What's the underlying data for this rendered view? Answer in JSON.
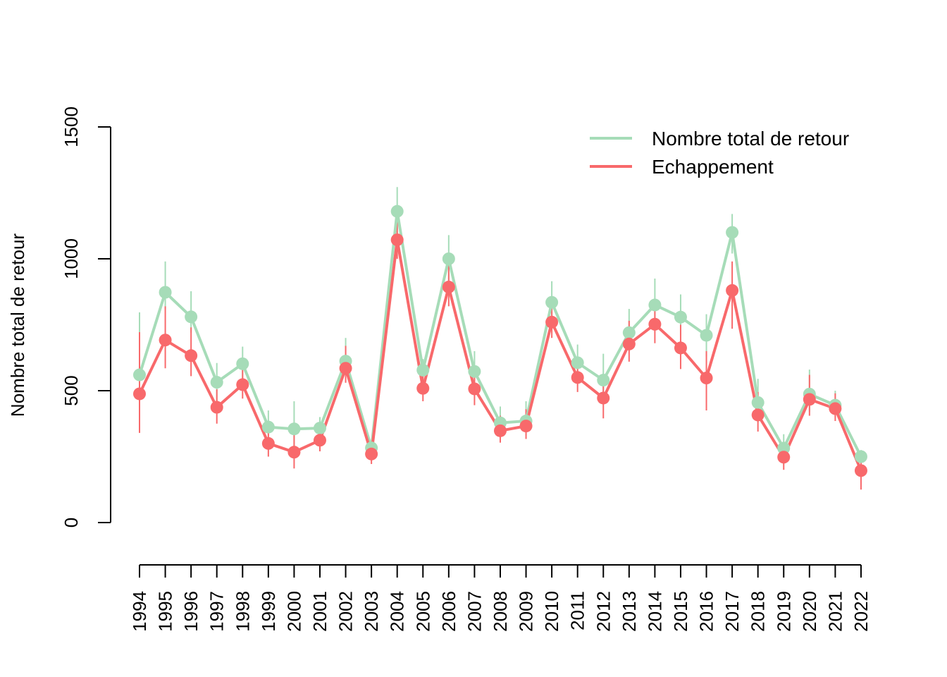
{
  "chart_data": {
    "type": "line",
    "title": "",
    "xlabel": "",
    "ylabel": "Nombre total de retour",
    "ylim": [
      0,
      1500
    ],
    "yticks": [
      0,
      500,
      1000,
      1500
    ],
    "grid": false,
    "legend_position": "top-right",
    "categories": [
      "1994",
      "1995",
      "1996",
      "1997",
      "1998",
      "1999",
      "2000",
      "2001",
      "2002",
      "2003",
      "2004",
      "2005",
      "2006",
      "2007",
      "2008",
      "2009",
      "2010",
      "2011",
      "2012",
      "2013",
      "2014",
      "2015",
      "2016",
      "2017",
      "2018",
      "2019",
      "2020",
      "2021",
      "2022"
    ],
    "series": [
      {
        "name": "Nombre total de retour",
        "color": "#A6DCB8",
        "values": [
          560,
          873,
          780,
          532,
          602,
          362,
          355,
          358,
          612,
          283,
          1180,
          578,
          1000,
          573,
          378,
          385,
          835,
          606,
          540,
          720,
          825,
          779,
          710,
          1100,
          455,
          282,
          487,
          445,
          250
        ],
        "upper": [
          797,
          990,
          877,
          605,
          667,
          425,
          460,
          400,
          700,
          300,
          1272,
          620,
          1090,
          650,
          440,
          460,
          915,
          675,
          640,
          810,
          925,
          865,
          790,
          1170,
          545,
          335,
          580,
          500,
          275
        ],
        "lower": [
          470,
          810,
          720,
          460,
          520,
          320,
          280,
          320,
          560,
          240,
          1080,
          520,
          900,
          500,
          330,
          330,
          770,
          550,
          450,
          650,
          740,
          710,
          630,
          1020,
          380,
          220,
          420,
          400,
          200
        ]
      },
      {
        "name": "Echappement",
        "color": "#F8696B",
        "values": [
          488,
          692,
          633,
          437,
          523,
          300,
          267,
          312,
          585,
          260,
          1072,
          509,
          893,
          507,
          348,
          366,
          760,
          550,
          472,
          677,
          752,
          662,
          548,
          880,
          408,
          248,
          467,
          432,
          197
        ],
        "upper": [
          722,
          820,
          740,
          505,
          590,
          360,
          350,
          360,
          670,
          290,
          1160,
          565,
          990,
          580,
          405,
          430,
          840,
          610,
          560,
          765,
          830,
          750,
          650,
          990,
          495,
          280,
          560,
          490,
          260
        ],
        "lower": [
          340,
          585,
          555,
          375,
          470,
          250,
          205,
          270,
          530,
          222,
          1000,
          460,
          820,
          445,
          303,
          317,
          700,
          495,
          395,
          610,
          680,
          582,
          425,
          735,
          345,
          200,
          405,
          385,
          125
        ]
      }
    ]
  }
}
